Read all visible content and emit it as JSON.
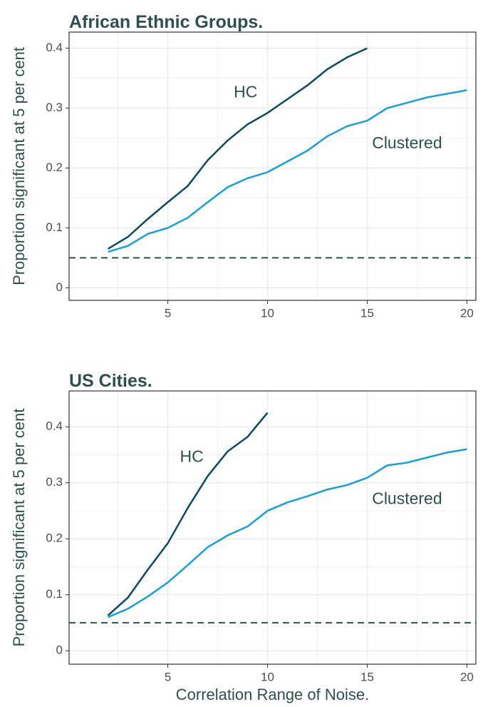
{
  "chart_data": [
    {
      "type": "line",
      "title": "African Ethnic Groups.",
      "y_label": "Proportion significant at 5 per cent",
      "xlim": [
        0.05,
        20.45
      ],
      "xticks": [
        5,
        10,
        15,
        20
      ],
      "ylim": [
        -0.021,
        0.427
      ],
      "yticks": [
        0.0,
        0.1,
        0.2,
        0.3,
        0.4
      ],
      "grid": true,
      "hline": 0.05,
      "series": [
        {
          "name": "HC",
          "color": "#0d4a5e",
          "x": [
            2,
            3,
            4,
            5,
            6,
            7,
            8,
            9,
            10,
            11,
            12,
            13,
            14,
            15
          ],
          "values": [
            0.065,
            0.085,
            0.115,
            0.143,
            0.17,
            0.213,
            0.246,
            0.273,
            0.292,
            0.315,
            0.338,
            0.365,
            0.385,
            0.4
          ]
        },
        {
          "name": "Clustered",
          "color": "#1aa0d3",
          "x": [
            2,
            3,
            4,
            5,
            6,
            7,
            8,
            9,
            10,
            11,
            12,
            13,
            14,
            15,
            16,
            17,
            18,
            19,
            20
          ],
          "values": [
            0.06,
            0.07,
            0.09,
            0.1,
            0.117,
            0.143,
            0.168,
            0.183,
            0.193,
            0.211,
            0.229,
            0.253,
            0.27,
            0.279,
            0.3,
            0.309,
            0.318,
            0.324,
            0.33
          ]
        }
      ],
      "annotations": [
        {
          "text": "HC",
          "x": 8.9,
          "y": 0.325
        },
        {
          "text": "Clustered",
          "x": 17.0,
          "y": 0.24
        }
      ]
    },
    {
      "type": "line",
      "title": "US Cities.",
      "y_label": "Proportion significant at 5 per cent",
      "x_label": "Correlation Range of Noise.",
      "xlim": [
        0.05,
        20.45
      ],
      "xticks": [
        5,
        10,
        15,
        20
      ],
      "ylim": [
        -0.024,
        0.464
      ],
      "yticks": [
        0.0,
        0.1,
        0.2,
        0.3,
        0.4
      ],
      "grid": true,
      "hline": 0.05,
      "series": [
        {
          "name": "HC",
          "color": "#0d4a5e",
          "x": [
            2,
            3,
            4,
            5,
            6,
            7,
            8,
            9,
            10
          ],
          "values": [
            0.063,
            0.095,
            0.145,
            0.192,
            0.255,
            0.312,
            0.356,
            0.382,
            0.425
          ]
        },
        {
          "name": "Clustered",
          "color": "#1aa0d3",
          "x": [
            2,
            3,
            4,
            5,
            6,
            7,
            8,
            9,
            10,
            11,
            12,
            13,
            14,
            15,
            16,
            17,
            18,
            19,
            20
          ],
          "values": [
            0.06,
            0.075,
            0.097,
            0.122,
            0.153,
            0.185,
            0.206,
            0.222,
            0.25,
            0.265,
            0.276,
            0.288,
            0.296,
            0.309,
            0.331,
            0.336,
            0.345,
            0.354,
            0.36
          ]
        }
      ],
      "annotations": [
        {
          "text": "HC",
          "x": 6.2,
          "y": 0.345
        },
        {
          "text": "Clustered",
          "x": 17.0,
          "y": 0.27
        }
      ]
    }
  ]
}
